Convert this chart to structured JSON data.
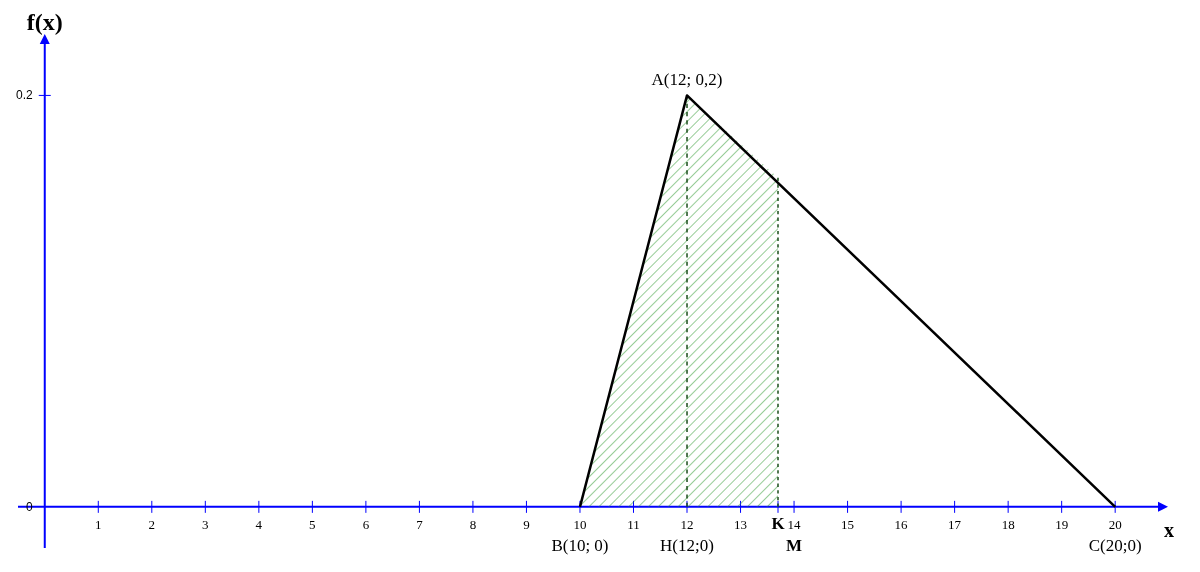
{
  "chart_data": {
    "type": "line",
    "xlabel": "x",
    "ylabel": "f(x)",
    "xlim": [
      -0.5,
      20.8
    ],
    "ylim": [
      -0.02,
      0.225
    ],
    "xticks": [
      {
        "value": 0,
        "label": null
      },
      1,
      2,
      3,
      4,
      5,
      6,
      7,
      8,
      9,
      10,
      11,
      12,
      13,
      {
        "value": 13.7,
        "label": "K"
      },
      14,
      15,
      16,
      17,
      18,
      19,
      20
    ],
    "yticks": [
      0,
      0.2
    ],
    "grid": false,
    "marker": "none",
    "series": [
      {
        "type": "area",
        "color": "#2e9a2e",
        "x": [
          10,
          12,
          13.7
        ],
        "values": [
          0,
          0.2,
          0.16
        ]
      },
      {
        "type": "line",
        "color": "#1a4d1a",
        "line_style": "dotted",
        "x": [
          12,
          12
        ],
        "values": [
          0,
          0.2
        ]
      },
      {
        "type": "line",
        "color": "#1a4d1a",
        "line_style": "dotted",
        "x": [
          13.7,
          13.7
        ],
        "values": [
          0,
          0.16
        ]
      },
      {
        "color": "#000000",
        "line_style": "solid",
        "x": [
          10,
          12,
          20
        ],
        "values": [
          0,
          0.2,
          0
        ]
      }
    ],
    "annotations": [
      {
        "text": "A(12; 0,2)",
        "x": 12,
        "y": 0.2
      },
      {
        "text": "B(10; 0)",
        "x": 10,
        "y": 0
      },
      {
        "text": "H(12;0)",
        "x": 12,
        "y": 0
      },
      "M",
      {
        "text": "C(20;0)",
        "x": 20,
        "y": 0
      }
    ]
  }
}
